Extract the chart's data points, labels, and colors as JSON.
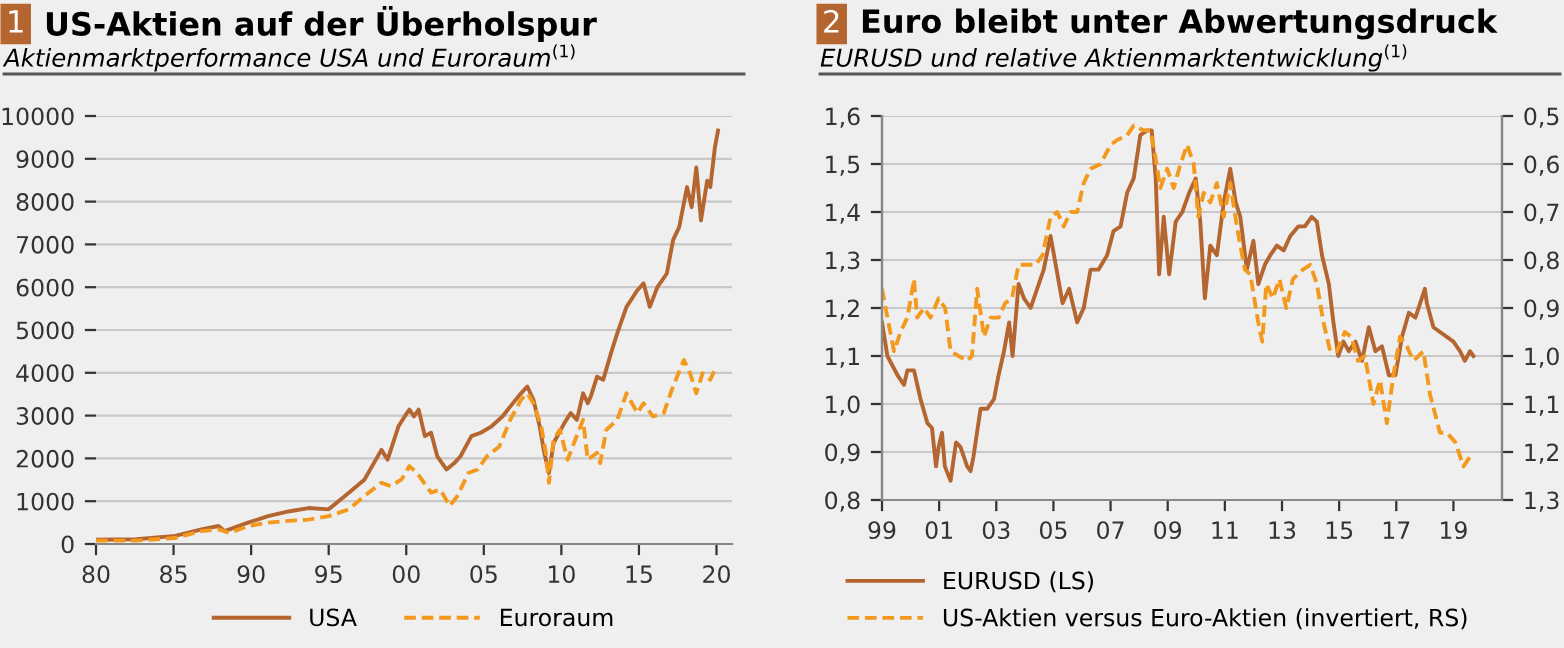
{
  "chart_data": [
    {
      "type": "line",
      "annotations": [
        "1"
      ],
      "title": "US-Aktien auf der Überholspur",
      "subtitle": "Aktienmarktperformance USA und Euroraum$^{(1)}$",
      "xlim": [
        1980,
        2021
      ],
      "xticks": [
        {
          "value": 1980,
          "label": "80"
        },
        {
          "value": 1985,
          "label": "85"
        },
        {
          "value": 1990,
          "label": "90"
        },
        {
          "value": 1995,
          "label": "95"
        },
        {
          "value": 2000,
          "label": "00"
        },
        {
          "value": 2005,
          "label": "05"
        },
        {
          "value": 2010,
          "label": "10"
        },
        {
          "value": 2015,
          "label": "15"
        },
        {
          "value": 2020,
          "label": "20"
        }
      ],
      "ylim": [
        0,
        10000
      ],
      "yticks": [
        0,
        1000,
        2000,
        3000,
        4000,
        5000,
        6000,
        7000,
        8000,
        9000,
        10000
      ],
      "grid": "y",
      "legend": "bottom",
      "series": [
        {
          "name": "USA",
          "color": "#b5652f",
          "line_style": "solid",
          "x": [
            1980,
            1982.6,
            1985.1,
            1986.8,
            1987.9,
            1988.3,
            1989.8,
            1991.1,
            1992.4,
            1993.7,
            1995.0,
            1996.3,
            1997.3,
            1998.4,
            1998.8,
            1999.5,
            1999.9,
            2000.2,
            2000.5,
            2000.8,
            2001.2,
            2001.6,
            2002.0,
            2002.6,
            2003.1,
            2003.5,
            2004.2,
            2004.8,
            2005.5,
            2006.2,
            2006.7,
            2007.4,
            2007.8,
            2008.2,
            2008.6,
            2008.9,
            2009.2,
            2009.5,
            2010.2,
            2010.6,
            2011.0,
            2011.4,
            2011.7,
            2011.9,
            2012.3,
            2012.7,
            2013.2,
            2013.6,
            2014.2,
            2014.9,
            2015.3,
            2015.7,
            2016.2,
            2016.8,
            2017.2,
            2017.6,
            2018.1,
            2018.4,
            2018.7,
            2019.0,
            2019.4,
            2019.6,
            2019.9,
            2020.1
          ],
          "values": [
            100,
            110,
            190,
            340,
            420,
            300,
            500,
            650,
            760,
            840,
            810,
            1200,
            1500,
            2200,
            1970,
            2750,
            2980,
            3140,
            2980,
            3140,
            2520,
            2600,
            2050,
            1740,
            1890,
            2050,
            2520,
            2600,
            2750,
            2980,
            3210,
            3520,
            3680,
            3370,
            2750,
            2130,
            1660,
            2360,
            2830,
            3060,
            2900,
            3520,
            3290,
            3450,
            3910,
            3840,
            4460,
            4920,
            5540,
            5930,
            6090,
            5540,
            6010,
            6320,
            7100,
            7410,
            8340,
            7870,
            8800,
            7560,
            8490,
            8340,
            9270,
            9660
          ]
        },
        {
          "name": "Euroraum",
          "color": "#f39a1e",
          "line_style": "dashed",
          "x": [
            1980,
            1982.6,
            1985.1,
            1986.8,
            1987.9,
            1988.6,
            1989.8,
            1991.1,
            1992.4,
            1993.7,
            1995.0,
            1996.3,
            1997.3,
            1998.4,
            1999.0,
            1999.7,
            2000.2,
            2000.7,
            2001.6,
            2002.2,
            2002.8,
            2003.3,
            2004.0,
            2004.6,
            2005.2,
            2006.0,
            2006.7,
            2007.4,
            2007.8,
            2008.2,
            2008.7,
            2009.0,
            2009.2,
            2009.5,
            2009.9,
            2010.4,
            2010.9,
            2011.4,
            2011.7,
            2012.3,
            2012.5,
            2012.9,
            2013.6,
            2014.2,
            2014.9,
            2015.3,
            2015.9,
            2016.6,
            2017.2,
            2017.9,
            2018.3,
            2018.7,
            2019.1,
            2019.6,
            2020.0
          ],
          "values": [
            80,
            80,
            140,
            300,
            340,
            260,
            420,
            500,
            540,
            570,
            650,
            810,
            1120,
            1430,
            1350,
            1510,
            1820,
            1660,
            1200,
            1270,
            890,
            1120,
            1660,
            1740,
            2050,
            2280,
            2900,
            3370,
            3520,
            3290,
            2750,
            2130,
            1430,
            2440,
            2670,
            1970,
            2440,
            2900,
            1970,
            2130,
            1890,
            2670,
            2900,
            3520,
            3060,
            3290,
            2980,
            3060,
            3680,
            4300,
            3990,
            3520,
            3990,
            3840,
            4150
          ]
        }
      ]
    },
    {
      "type": "line",
      "annotations": [
        "2"
      ],
      "title": "Euro bleibt unter Abwertungsdruck",
      "subtitle": "EURUSD und relative Aktienmarktentwicklung$^{(1)}$",
      "xlim": [
        1999,
        2020.7
      ],
      "xticks": [
        {
          "value": 1999,
          "label": "99"
        },
        {
          "value": 2001,
          "label": "01"
        },
        {
          "value": 2003,
          "label": "03"
        },
        {
          "value": 2005,
          "label": "05"
        },
        {
          "value": 2007,
          "label": "07"
        },
        {
          "value": 2009,
          "label": "09"
        },
        {
          "value": 2011,
          "label": "11"
        },
        {
          "value": 2013,
          "label": "13"
        },
        {
          "value": 2015,
          "label": "15"
        },
        {
          "value": 2017,
          "label": "17"
        },
        {
          "value": 2019,
          "label": "19"
        }
      ],
      "ylim": [
        0.8,
        1.6
      ],
      "yticks": [
        {
          "value": 0.8,
          "label": "0,8"
        },
        {
          "value": 0.9,
          "label": "0,9"
        },
        {
          "value": 1.0,
          "label": "1,0"
        },
        {
          "value": 1.1,
          "label": "1,1"
        },
        {
          "value": 1.2,
          "label": "1,2"
        },
        {
          "value": 1.3,
          "label": "1,3"
        },
        {
          "value": 1.4,
          "label": "1,4"
        },
        {
          "value": 1.5,
          "label": "1,5"
        },
        {
          "value": 1.6,
          "label": "1,6"
        }
      ],
      "y2lim": [
        1.3,
        0.5
      ],
      "y2ticks": [
        {
          "value": 1.3,
          "label": "1,3"
        },
        {
          "value": 1.2,
          "label": "1,2"
        },
        {
          "value": 1.1,
          "label": "1,1"
        },
        {
          "value": 1.0,
          "label": "1,0"
        },
        {
          "value": 0.9,
          "label": "0,9"
        },
        {
          "value": 0.8,
          "label": "0,8"
        },
        {
          "value": 0.7,
          "label": "0,7"
        },
        {
          "value": 0.6,
          "label": "0,6"
        },
        {
          "value": 0.5,
          "label": "0,5"
        }
      ],
      "grid": "y",
      "legend": "bottom",
      "series": [
        {
          "name": "EURUSD (LS)",
          "color": "#b5652f",
          "line_style": "solid",
          "x": [
            1999.0,
            1999.19,
            1999.54,
            1999.77,
            1999.89,
            2000.12,
            2000.35,
            2000.59,
            2000.75,
            2000.89,
            2000.98,
            2001.1,
            2001.2,
            2001.4,
            2001.59,
            2001.75,
            2001.98,
            2002.1,
            2002.2,
            2002.45,
            2002.68,
            2002.92,
            2003.08,
            2003.27,
            2003.45,
            2003.57,
            2003.78,
            2003.97,
            2004.2,
            2004.43,
            2004.66,
            2004.9,
            2005.08,
            2005.32,
            2005.55,
            2005.83,
            2006.06,
            2006.3,
            2006.58,
            2006.88,
            2007.1,
            2007.35,
            2007.58,
            2007.81,
            2008.04,
            2008.28,
            2008.44,
            2008.58,
            2008.7,
            2008.86,
            2009.05,
            2009.28,
            2009.51,
            2009.75,
            2009.98,
            2010.14,
            2010.3,
            2010.49,
            2010.72,
            2010.96,
            2011.19,
            2011.38,
            2011.54,
            2011.77,
            2012.0,
            2012.17,
            2012.4,
            2012.59,
            2012.82,
            2013.06,
            2013.29,
            2013.57,
            2013.8,
            2014.04,
            2014.22,
            2014.4,
            2014.64,
            2014.8,
            2014.97,
            2015.15,
            2015.34,
            2015.57,
            2015.8,
            2016.04,
            2016.27,
            2016.5,
            2016.74,
            2016.97,
            2017.2,
            2017.44,
            2017.67,
            2018.0,
            2018.07,
            2018.3,
            2018.53,
            2018.77,
            2019.0,
            2019.23,
            2019.4,
            2019.58,
            2019.7
          ],
          "values": [
            1.17,
            1.1,
            1.06,
            1.04,
            1.07,
            1.07,
            1.01,
            0.96,
            0.95,
            0.87,
            0.91,
            0.94,
            0.87,
            0.84,
            0.92,
            0.91,
            0.87,
            0.86,
            0.89,
            0.99,
            0.99,
            1.01,
            1.06,
            1.11,
            1.17,
            1.1,
            1.25,
            1.22,
            1.2,
            1.24,
            1.28,
            1.35,
            1.29,
            1.21,
            1.24,
            1.17,
            1.2,
            1.28,
            1.28,
            1.31,
            1.36,
            1.37,
            1.44,
            1.47,
            1.56,
            1.57,
            1.57,
            1.47,
            1.27,
            1.39,
            1.27,
            1.38,
            1.4,
            1.44,
            1.47,
            1.38,
            1.22,
            1.33,
            1.31,
            1.42,
            1.49,
            1.42,
            1.39,
            1.28,
            1.34,
            1.25,
            1.29,
            1.31,
            1.33,
            1.32,
            1.35,
            1.37,
            1.37,
            1.39,
            1.38,
            1.31,
            1.25,
            1.17,
            1.1,
            1.13,
            1.11,
            1.13,
            1.09,
            1.16,
            1.11,
            1.12,
            1.06,
            1.06,
            1.14,
            1.19,
            1.18,
            1.24,
            1.21,
            1.16,
            1.15,
            1.14,
            1.13,
            1.11,
            1.09,
            1.11,
            1.1
          ]
        },
        {
          "name": "US-Aktien versus Euro-Aktien (invertiert, RS)",
          "color": "#f39a1e",
          "line_style": "dashed",
          "axis": "y2",
          "x": [
            1999.0,
            1999.19,
            1999.42,
            1999.65,
            1999.89,
            2000.12,
            2000.23,
            2000.47,
            2000.7,
            2000.98,
            2001.21,
            2001.4,
            2001.68,
            2001.98,
            2002.15,
            2002.33,
            2002.57,
            2002.8,
            2003.08,
            2003.31,
            2003.55,
            2003.78,
            2004.08,
            2004.38,
            2004.62,
            2004.9,
            2005.13,
            2005.36,
            2005.6,
            2005.83,
            2006.06,
            2006.3,
            2006.65,
            2007.0,
            2007.23,
            2007.58,
            2007.81,
            2008.16,
            2008.4,
            2008.58,
            2008.74,
            2008.98,
            2009.21,
            2009.45,
            2009.68,
            2009.91,
            2010.07,
            2010.26,
            2010.49,
            2010.72,
            2010.96,
            2011.19,
            2011.42,
            2011.7,
            2011.89,
            2012.17,
            2012.31,
            2012.45,
            2012.68,
            2012.91,
            2013.15,
            2013.38,
            2013.73,
            2013.99,
            2014.22,
            2014.45,
            2014.69,
            2014.92,
            2015.2,
            2015.43,
            2015.66,
            2015.9,
            2016.2,
            2016.43,
            2016.67,
            2016.9,
            2017.13,
            2017.37,
            2017.6,
            2017.95,
            2018.18,
            2018.53,
            2018.77,
            2019.07,
            2019.35,
            2019.58,
            2019.7
          ],
          "values": [
            0.86,
            0.92,
            0.99,
            0.95,
            0.92,
            0.84,
            0.92,
            0.9,
            0.92,
            0.88,
            0.9,
            0.99,
            1.0,
            1.01,
            1.0,
            0.86,
            0.96,
            0.92,
            0.92,
            0.89,
            0.88,
            0.81,
            0.81,
            0.81,
            0.79,
            0.71,
            0.7,
            0.73,
            0.7,
            0.7,
            0.64,
            0.61,
            0.6,
            0.56,
            0.55,
            0.54,
            0.52,
            0.53,
            0.53,
            0.59,
            0.65,
            0.61,
            0.65,
            0.6,
            0.56,
            0.6,
            0.71,
            0.66,
            0.68,
            0.64,
            0.71,
            0.64,
            0.73,
            0.82,
            0.83,
            0.93,
            0.97,
            0.85,
            0.88,
            0.84,
            0.9,
            0.84,
            0.82,
            0.81,
            0.85,
            0.93,
            0.99,
            0.99,
            0.95,
            0.96,
            1.01,
            1.0,
            1.1,
            1.05,
            1.14,
            1.04,
            0.96,
            0.98,
            1.01,
            0.99,
            1.08,
            1.16,
            1.16,
            1.18,
            1.23,
            1.21,
            1.21
          ]
        }
      ]
    }
  ]
}
